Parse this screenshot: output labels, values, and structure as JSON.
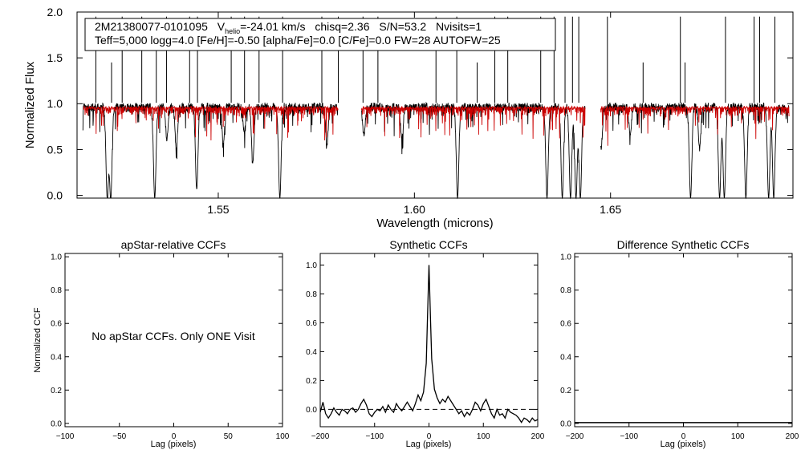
{
  "chart_data": [
    {
      "id": "spectrum",
      "type": "line",
      "title": "",
      "xlabel": "Wavelength (microns)",
      "ylabel": "Normalized Flux",
      "xlim": [
        1.514,
        1.6965
      ],
      "ylim": [
        -0.03,
        2.0
      ],
      "x_ticks": [
        1.55,
        1.6,
        1.65
      ],
      "x_tick_labels": [
        "1.55",
        "1.60",
        "1.65"
      ],
      "y_ticks": [
        0.0,
        0.5,
        1.0,
        1.5,
        2.0
      ],
      "y_tick_labels": [
        "0.0",
        "0.5",
        "1.0",
        "1.5",
        "2.0"
      ],
      "annotation": {
        "object": "2M21380077-0101095",
        "vhelio_label": "V",
        "vhelio_sub": "helio",
        "vhelio_value": "=-24.01 km/s",
        "chisq": "chisq=2.36",
        "snr": "S/N=53.2",
        "nvisits": "Nvisits=1",
        "line2": "Teff=5,000 logg=4.0 [Fe/H]=-0.50 [alpha/Fe]=0.0 [C/Fe]=0.0 FW=28 AUTOFW=25"
      },
      "detector_segments": [
        [
          1.5155,
          1.5805
        ],
        [
          1.5865,
          1.6435
        ],
        [
          1.6475,
          1.6955
        ]
      ],
      "continuum_level": 0.96,
      "series": [
        {
          "name": "observed spectrum",
          "color": "#000000"
        },
        {
          "name": "model spectrum",
          "color": "#cc0000"
        }
      ],
      "absorption_features": [
        {
          "x": 1.5217,
          "depth": 1.0
        },
        {
          "x": 1.5226,
          "depth": 1.0
        },
        {
          "x": 1.5338,
          "depth": 1.0
        },
        {
          "x": 1.5369,
          "depth": 0.35
        },
        {
          "x": 1.5393,
          "depth": 0.45
        },
        {
          "x": 1.5445,
          "depth": 0.9
        },
        {
          "x": 1.5513,
          "depth": 0.4
        },
        {
          "x": 1.5566,
          "depth": 0.28
        },
        {
          "x": 1.5588,
          "depth": 0.6
        },
        {
          "x": 1.5657,
          "depth": 1.0
        },
        {
          "x": 1.5777,
          "depth": 0.42
        },
        {
          "x": 1.5871,
          "depth": 0.3
        },
        {
          "x": 1.5968,
          "depth": 0.35
        },
        {
          "x": 1.611,
          "depth": 1.0
        },
        {
          "x": 1.6338,
          "depth": 1.0
        },
        {
          "x": 1.6377,
          "depth": 1.0
        },
        {
          "x": 1.6398,
          "depth": 1.0
        },
        {
          "x": 1.6412,
          "depth": 1.0
        },
        {
          "x": 1.6423,
          "depth": 1.0
        },
        {
          "x": 1.6476,
          "depth": 0.45
        },
        {
          "x": 1.655,
          "depth": 0.3
        },
        {
          "x": 1.6704,
          "depth": 1.0
        },
        {
          "x": 1.6727,
          "depth": 0.45
        },
        {
          "x": 1.6778,
          "depth": 1.0
        },
        {
          "x": 1.679,
          "depth": 1.0
        },
        {
          "x": 1.6845,
          "depth": 1.0
        },
        {
          "x": 1.6903,
          "depth": 1.0
        },
        {
          "x": 1.6916,
          "depth": 1.0
        }
      ],
      "emission_spikes": [
        {
          "x": 1.5188,
          "height": 1.95
        },
        {
          "x": 1.5228,
          "height": 1.45
        },
        {
          "x": 1.5255,
          "height": 1.95
        },
        {
          "x": 1.5305,
          "height": 1.95
        },
        {
          "x": 1.5342,
          "height": 1.7
        },
        {
          "x": 1.5368,
          "height": 1.95
        },
        {
          "x": 1.5427,
          "height": 1.95
        },
        {
          "x": 1.5447,
          "height": 1.95
        },
        {
          "x": 1.5533,
          "height": 1.95
        },
        {
          "x": 1.5567,
          "height": 1.95
        },
        {
          "x": 1.5604,
          "height": 1.95
        },
        {
          "x": 1.5664,
          "height": 1.95
        },
        {
          "x": 1.5764,
          "height": 1.95
        },
        {
          "x": 1.5806,
          "height": 1.95
        },
        {
          "x": 1.5869,
          "height": 1.95
        },
        {
          "x": 1.5907,
          "height": 1.95
        },
        {
          "x": 1.6055,
          "height": 1.95
        },
        {
          "x": 1.6108,
          "height": 1.95
        },
        {
          "x": 1.616,
          "height": 1.45
        },
        {
          "x": 1.6205,
          "height": 1.95
        },
        {
          "x": 1.6238,
          "height": 1.95
        },
        {
          "x": 1.6322,
          "height": 1.95
        },
        {
          "x": 1.6356,
          "height": 1.95
        },
        {
          "x": 1.6384,
          "height": 1.95
        },
        {
          "x": 1.6403,
          "height": 1.95
        },
        {
          "x": 1.6419,
          "height": 1.95
        },
        {
          "x": 1.6492,
          "height": 1.95
        },
        {
          "x": 1.6583,
          "height": 1.45
        },
        {
          "x": 1.6678,
          "height": 1.95
        },
        {
          "x": 1.669,
          "height": 1.45
        },
        {
          "x": 1.6793,
          "height": 1.95
        },
        {
          "x": 1.6866,
          "height": 1.95
        },
        {
          "x": 1.688,
          "height": 1.95
        },
        {
          "x": 1.6919,
          "height": 1.95
        }
      ]
    },
    {
      "id": "apstar_ccf",
      "type": "line",
      "title": "apStar-relative CCFs",
      "xlabel": "Lag (pixels)",
      "ylabel": "Normalized CCF",
      "xlim": [
        -100,
        100
      ],
      "ylim": [
        -0.02,
        1.02
      ],
      "x_ticks": [
        -100,
        -50,
        0,
        50,
        100
      ],
      "x_tick_labels": [
        "-100",
        "-50",
        "0",
        "50",
        "100"
      ],
      "y_ticks": [
        0.0,
        0.2,
        0.4,
        0.6,
        0.8,
        1.0
      ],
      "y_tick_labels": [
        "0.0",
        "0.2",
        "0.4",
        "0.6",
        "0.8",
        "1.0"
      ],
      "message": "No apStar CCFs.  Only ONE Visit",
      "series": []
    },
    {
      "id": "synthetic_ccf",
      "type": "line",
      "title": "Synthetic CCFs",
      "xlabel": "Lag (pixels)",
      "ylabel": "",
      "xlim": [
        -200,
        200
      ],
      "ylim": [
        -0.12,
        1.08
      ],
      "x_ticks": [
        -200,
        -100,
        0,
        100,
        200
      ],
      "x_tick_labels": [
        "-200",
        "-100",
        "0",
        "100",
        "200"
      ],
      "y_ticks": [
        0.0,
        0.2,
        0.4,
        0.6,
        0.8,
        1.0
      ],
      "y_tick_labels": [
        "0.0",
        "0.2",
        "0.4",
        "0.6",
        "0.8",
        "1.0"
      ],
      "zero_line": 0.0,
      "series": [
        {
          "name": "synthetic CCF",
          "x": [
            -200,
            -195,
            -190,
            -185,
            -180,
            -175,
            -170,
            -165,
            -160,
            -155,
            -150,
            -145,
            -140,
            -135,
            -130,
            -125,
            -120,
            -115,
            -110,
            -105,
            -100,
            -95,
            -90,
            -85,
            -80,
            -75,
            -70,
            -65,
            -60,
            -55,
            -50,
            -45,
            -40,
            -35,
            -30,
            -25,
            -20,
            -15,
            -10,
            -5,
            -3,
            0,
            3,
            5,
            10,
            15,
            20,
            25,
            30,
            35,
            40,
            45,
            50,
            55,
            60,
            65,
            70,
            75,
            80,
            85,
            90,
            95,
            100,
            105,
            110,
            115,
            120,
            125,
            130,
            135,
            140,
            145,
            150,
            155,
            160,
            165,
            170,
            175,
            180,
            185,
            190,
            195,
            200
          ],
          "y": [
            -0.02,
            0.05,
            -0.03,
            -0.06,
            -0.03,
            0.01,
            -0.02,
            -0.04,
            0.0,
            -0.01,
            -0.03,
            0.0,
            0.01,
            -0.02,
            0.0,
            0.04,
            0.07,
            0.03,
            -0.03,
            -0.05,
            -0.02,
            0.0,
            -0.01,
            0.02,
            -0.02,
            0.03,
            0.0,
            -0.02,
            0.04,
            0.01,
            -0.01,
            0.02,
            0.05,
            0.02,
            -0.01,
            0.04,
            0.1,
            0.06,
            0.12,
            0.32,
            0.6,
            1.0,
            0.6,
            0.35,
            0.14,
            0.08,
            0.04,
            0.07,
            0.05,
            0.09,
            0.06,
            0.03,
            0.0,
            -0.03,
            -0.01,
            -0.05,
            -0.02,
            -0.04,
            0.0,
            0.05,
            0.03,
            -0.01,
            0.04,
            0.07,
            0.02,
            -0.03,
            -0.06,
            0.0,
            -0.04,
            -0.03,
            -0.06,
            0.0,
            -0.02,
            -0.03,
            -0.04,
            -0.06,
            -0.09,
            -0.06,
            -0.07,
            -0.09,
            -0.06,
            -0.08,
            -0.07
          ]
        }
      ]
    },
    {
      "id": "difference_ccf",
      "type": "line",
      "title": "Difference Synthetic CCFs",
      "xlabel": "Lag (pixels)",
      "ylabel": "",
      "xlim": [
        -200,
        200
      ],
      "ylim": [
        -0.02,
        1.02
      ],
      "x_ticks": [
        -200,
        -100,
        0,
        100,
        200
      ],
      "x_tick_labels": [
        "-200",
        "-100",
        "0",
        "100",
        "200"
      ],
      "y_ticks": [
        0.0,
        0.2,
        0.4,
        0.6,
        0.8,
        1.0
      ],
      "y_tick_labels": [
        "0.0",
        "0.2",
        "0.4",
        "0.6",
        "0.8",
        "1.0"
      ],
      "series": [
        {
          "name": "difference CCF",
          "x": [
            -200,
            200
          ],
          "y": [
            0.0,
            0.0
          ]
        }
      ]
    }
  ]
}
